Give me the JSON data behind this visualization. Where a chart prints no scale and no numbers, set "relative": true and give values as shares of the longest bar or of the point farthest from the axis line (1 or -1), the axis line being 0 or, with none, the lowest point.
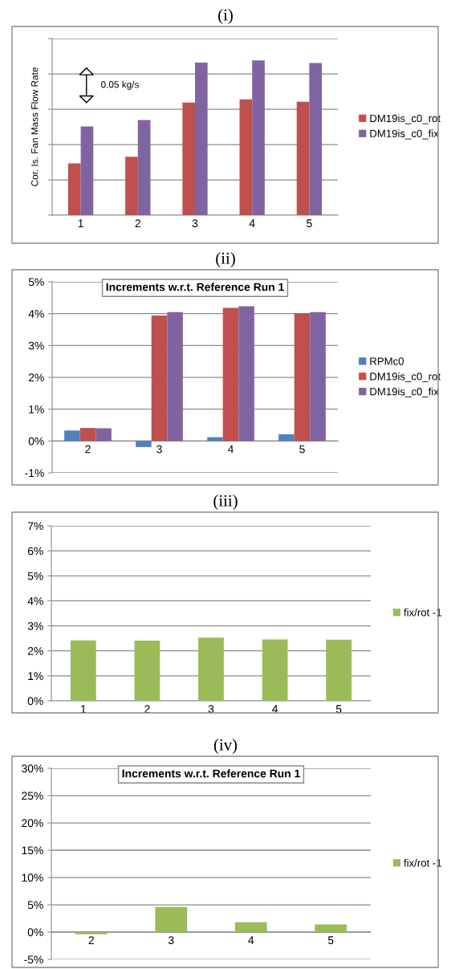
{
  "chart_data": [
    {
      "type": "bar",
      "title": "(i)",
      "ylabel": "Cor. Is. Fan Mass Flow Rate",
      "relative": true,
      "categories": [
        "1",
        "2",
        "3",
        "4",
        "5"
      ],
      "series": [
        {
          "name": "DM19is_c0_rot",
          "color": "#c0504d",
          "values": [
            0.334,
            0.377,
            0.727,
            0.748,
            0.733
          ]
        },
        {
          "name": "DM19is_c0_fix",
          "color": "#8064a2",
          "values": [
            0.573,
            0.614,
            0.985,
            1,
            0.983
          ]
        }
      ],
      "annotations": [
        "0.05 kg/s"
      ],
      "grid": "y",
      "legend": "right"
    },
    {
      "type": "bar",
      "title": "(ii)",
      "subtitle": "Increments w.r.t. Reference Run 1",
      "categories": [
        "2",
        "3",
        "4",
        "5"
      ],
      "series": [
        {
          "name": "RPMc0",
          "color": "#4f81bd",
          "values": [
            0.33,
            -0.19,
            0.12,
            0.21
          ]
        },
        {
          "name": "DM19is_c0_rot",
          "color": "#c0504d",
          "values": [
            0.41,
            3.94,
            4.18,
            4.01
          ]
        },
        {
          "name": "DM19is_c0_fix",
          "color": "#8064a2",
          "values": [
            0.4,
            4.05,
            4.23,
            4.05
          ]
        }
      ],
      "ylim": [
        -1,
        5
      ],
      "yticks": [
        {
          "value": -1,
          "label": "-1%"
        },
        {
          "value": 0,
          "label": "0%"
        },
        {
          "value": 1,
          "label": "1%"
        },
        {
          "value": 2,
          "label": "2%"
        },
        {
          "value": 3,
          "label": "3%"
        },
        {
          "value": 4,
          "label": "4%"
        },
        {
          "value": 5,
          "label": "5%"
        }
      ],
      "grid": "y",
      "legend": "right"
    },
    {
      "type": "bar",
      "title": "(iii)",
      "categories": [
        "1",
        "2",
        "3",
        "4",
        "5"
      ],
      "series": [
        {
          "name": "fix/rot -1",
          "color": "#9bbb59",
          "values": [
            2.42,
            2.41,
            2.53,
            2.46,
            2.45
          ]
        }
      ],
      "ylim": [
        0,
        7
      ],
      "yticks": [
        {
          "value": 0,
          "label": "0%"
        },
        {
          "value": 1,
          "label": "1%"
        },
        {
          "value": 2,
          "label": "2%"
        },
        {
          "value": 3,
          "label": "3%"
        },
        {
          "value": 4,
          "label": "4%"
        },
        {
          "value": 5,
          "label": "5%"
        },
        {
          "value": 6,
          "label": "6%"
        },
        {
          "value": 7,
          "label": "7%"
        }
      ],
      "grid": "y",
      "legend": "right"
    },
    {
      "type": "bar",
      "title": "(iv)",
      "subtitle": "Increments w.r.t. Reference Run 1",
      "categories": [
        "2",
        "3",
        "4",
        "5"
      ],
      "series": [
        {
          "name": "fix/rot -1",
          "color": "#9bbb59",
          "values": [
            -0.4,
            4.6,
            1.8,
            1.4
          ]
        }
      ],
      "ylim": [
        -5,
        30
      ],
      "yticks": [
        {
          "value": -5,
          "label": "-5%"
        },
        {
          "value": 0,
          "label": "0%"
        },
        {
          "value": 5,
          "label": "5%"
        },
        {
          "value": 10,
          "label": "10%"
        },
        {
          "value": 15,
          "label": "15%"
        },
        {
          "value": 20,
          "label": "20%"
        },
        {
          "value": 25,
          "label": "25%"
        },
        {
          "value": 30,
          "label": "30%"
        }
      ],
      "grid": "y",
      "legend": "right"
    }
  ]
}
